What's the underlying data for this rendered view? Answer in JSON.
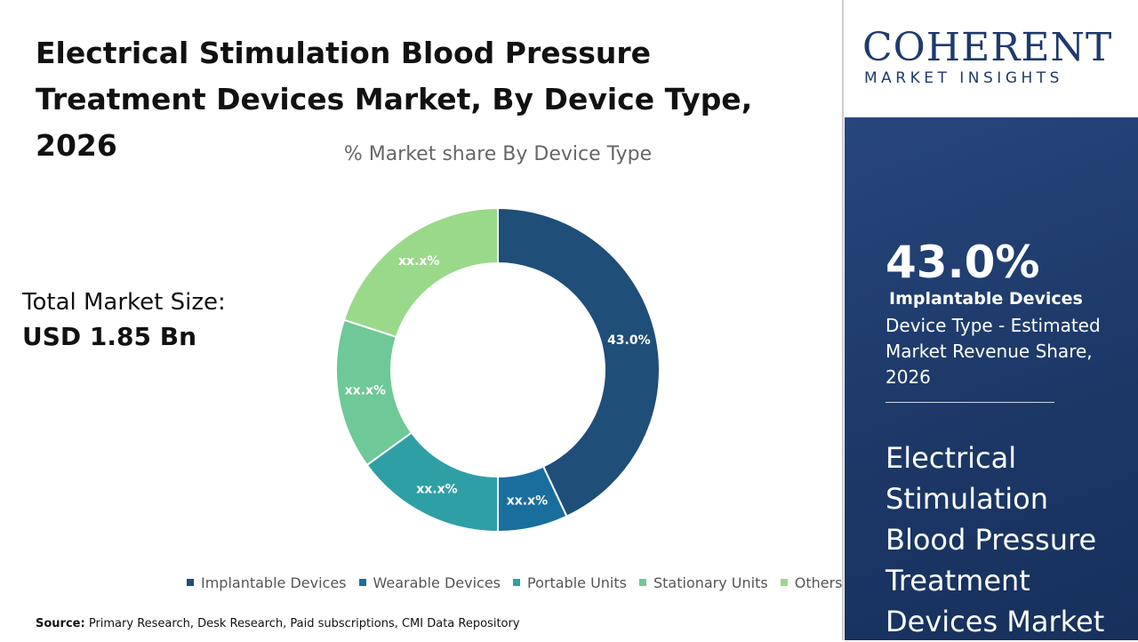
{
  "header": {
    "title": "Electrical Stimulation Blood Pressure Treatment Devices Market, By Device Type, 2026"
  },
  "logo": {
    "name": "COHERENT",
    "tagline": "MARKET INSIGHTS"
  },
  "market_size": {
    "label": "Total Market Size:",
    "value": "USD 1.85 Bn"
  },
  "sidebar": {
    "highlight": "43.0%",
    "segment": "Implantable Devices",
    "description": "Device Type - Estimated Market Revenue Share, 2026",
    "market_name": "Electrical Stimulation Blood Pressure Treatment Devices Market"
  },
  "source": {
    "label": "Source:",
    "text": "Primary Research, Desk Research, Paid subscriptions, CMI Data Repository"
  },
  "chart_data": {
    "type": "pie",
    "title": "% Market share By Device Type",
    "categories": [
      "Implantable Devices",
      "Wearable Devices",
      "Portable Units",
      "Stationary Units",
      "Others"
    ],
    "values": [
      43.0,
      7,
      15,
      15,
      20
    ],
    "value_labels": [
      "43.0%",
      "xx.x%",
      "xx.x%",
      "xx.x%",
      "xx.x%"
    ],
    "colors": [
      "#1f4e79",
      "#1a6e9e",
      "#2f9fa6",
      "#6ec897",
      "#9ad98a"
    ],
    "donut": true
  }
}
